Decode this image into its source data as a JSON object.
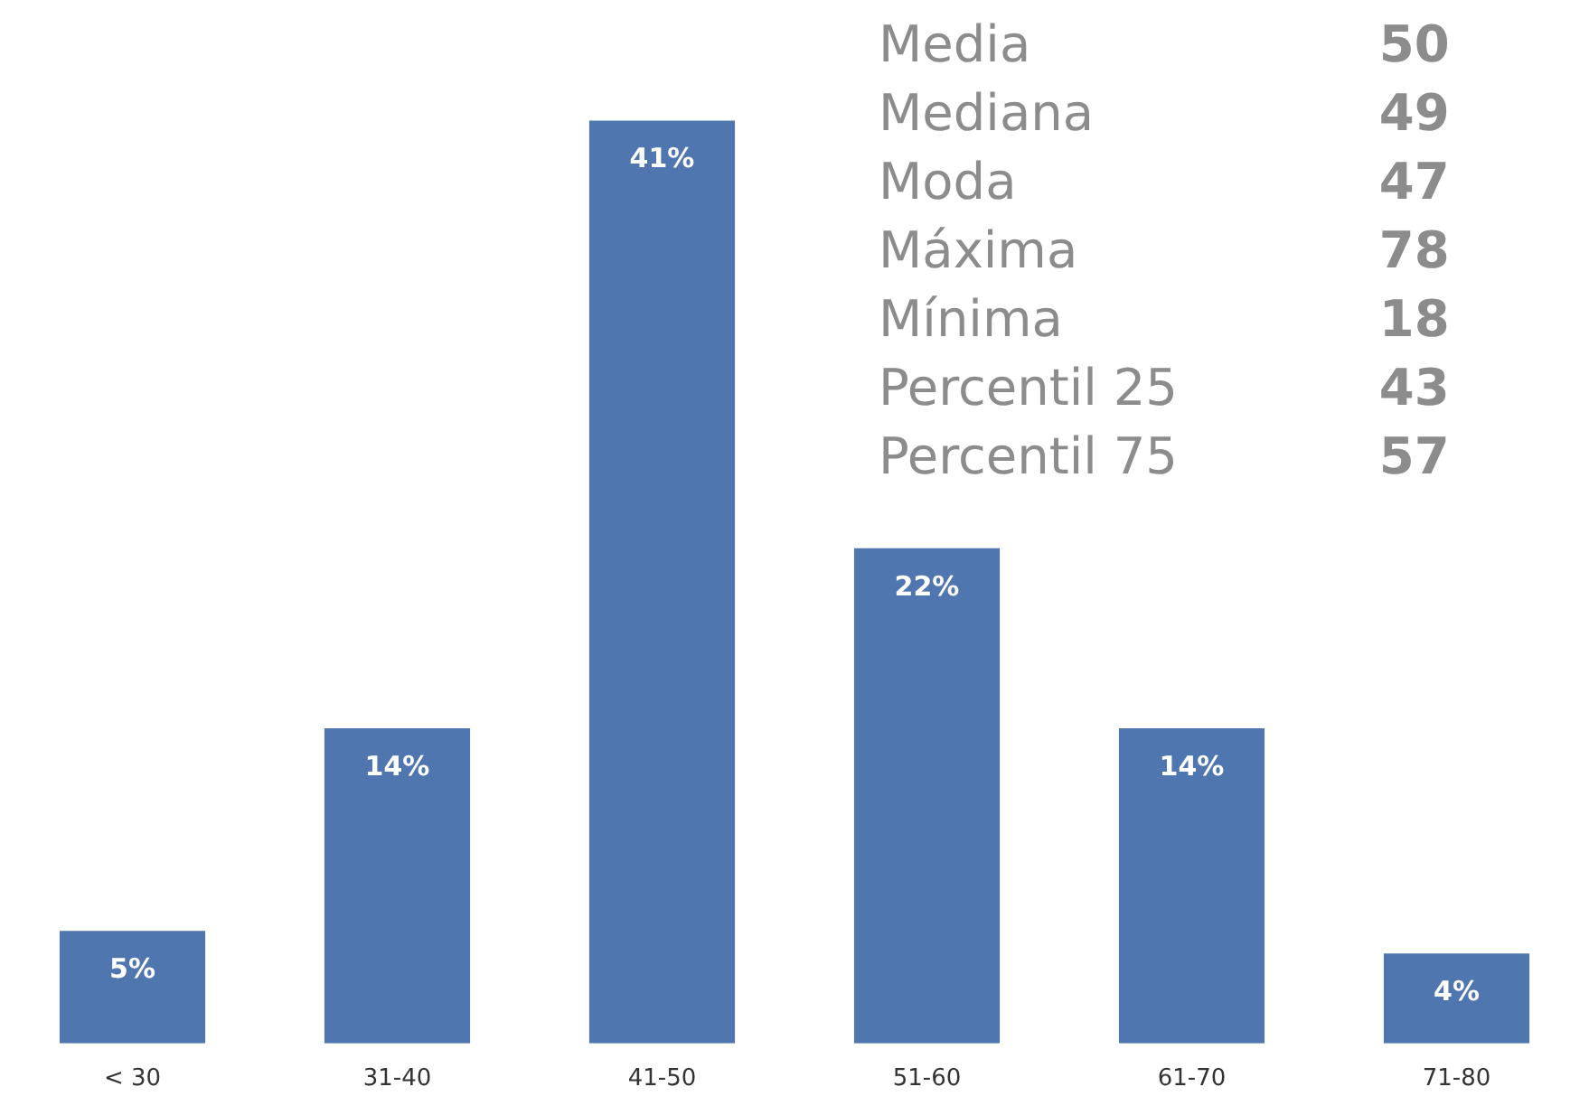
{
  "chart_data": {
    "type": "bar",
    "categories": [
      "< 30",
      "31-40",
      "41-50",
      "51-60",
      "61-70",
      "71-80"
    ],
    "values": [
      5,
      14,
      41,
      22,
      14,
      4
    ],
    "color": "#4f76ae",
    "value_labels": [
      "5%",
      "14%",
      "41%",
      "22%",
      "14%",
      "4%"
    ],
    "grid": false,
    "legend": false,
    "annotations": [
      "Media 50",
      "Mediana 49",
      "Moda 47",
      "Máxima 78",
      "Mínima 18",
      "Percentil 25 43",
      "Percentil 75 57"
    ]
  }
}
